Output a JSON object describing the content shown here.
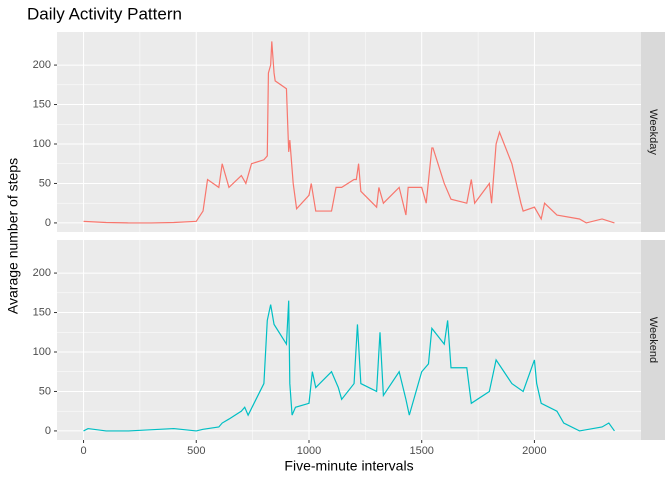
{
  "chart_data": {
    "type": "line",
    "title": "Daily Activity Pattern",
    "x_label": "Five-minute intervals",
    "y_label": "Avarage number of steps",
    "xlim": [
      -117.75,
      2472.75
    ],
    "xticks": [
      0,
      500,
      1000,
      1500,
      2000
    ],
    "ylim": [
      -11.5,
      241.9
    ],
    "yticks": [
      0,
      50,
      100,
      150,
      200
    ],
    "grid": true,
    "series": [
      {
        "name": "Weekday",
        "color": "#F8766D",
        "x": [
          0,
          100,
          200,
          300,
          400,
          500,
          530,
          550,
          600,
          615,
          630,
          645,
          700,
          720,
          745,
          800,
          815,
          820,
          830,
          835,
          845,
          850,
          900,
          910,
          915,
          930,
          945,
          1000,
          1010,
          1030,
          1100,
          1120,
          1145,
          1200,
          1210,
          1220,
          1230,
          1300,
          1310,
          1330,
          1400,
          1430,
          1440,
          1500,
          1520,
          1545,
          1550,
          1600,
          1630,
          1700,
          1720,
          1735,
          1800,
          1810,
          1830,
          1845,
          1900,
          1940,
          1950,
          2000,
          2030,
          2045,
          2100,
          2200,
          2230,
          2300,
          2355
        ],
        "values": [
          2,
          0.5,
          0,
          0,
          0.5,
          2,
          15,
          55,
          45,
          75,
          60,
          45,
          60,
          50,
          75,
          80,
          85,
          190,
          200,
          230,
          190,
          180,
          170,
          90,
          105,
          50,
          18,
          35,
          50,
          15,
          15,
          45,
          45,
          55,
          55,
          75,
          40,
          20,
          45,
          25,
          45,
          10,
          45,
          45,
          25,
          95,
          95,
          50,
          30,
          25,
          55,
          25,
          50,
          25,
          100,
          115,
          75,
          25,
          15,
          20,
          5,
          25,
          10,
          5,
          0,
          5,
          0
        ]
      },
      {
        "name": "Weekend",
        "color": "#00BFC4",
        "x": [
          0,
          20,
          100,
          200,
          400,
          500,
          530,
          600,
          615,
          645,
          700,
          715,
          730,
          800,
          815,
          830,
          845,
          900,
          910,
          915,
          925,
          940,
          1000,
          1015,
          1030,
          1100,
          1130,
          1145,
          1200,
          1215,
          1230,
          1300,
          1315,
          1330,
          1400,
          1430,
          1445,
          1500,
          1530,
          1545,
          1600,
          1615,
          1630,
          1700,
          1720,
          1800,
          1830,
          1900,
          1950,
          2000,
          2010,
          2030,
          2100,
          2130,
          2200,
          2300,
          2330,
          2355
        ],
        "values": [
          0,
          3,
          0,
          0,
          3,
          0,
          2,
          5,
          10,
          15,
          25,
          30,
          20,
          60,
          140,
          160,
          135,
          110,
          165,
          60,
          20,
          30,
          35,
          75,
          55,
          75,
          55,
          40,
          60,
          135,
          60,
          50,
          125,
          45,
          75,
          40,
          20,
          75,
          85,
          130,
          110,
          140,
          80,
          80,
          35,
          50,
          90,
          60,
          50,
          90,
          60,
          35,
          25,
          10,
          0,
          5,
          10,
          0
        ]
      }
    ]
  }
}
